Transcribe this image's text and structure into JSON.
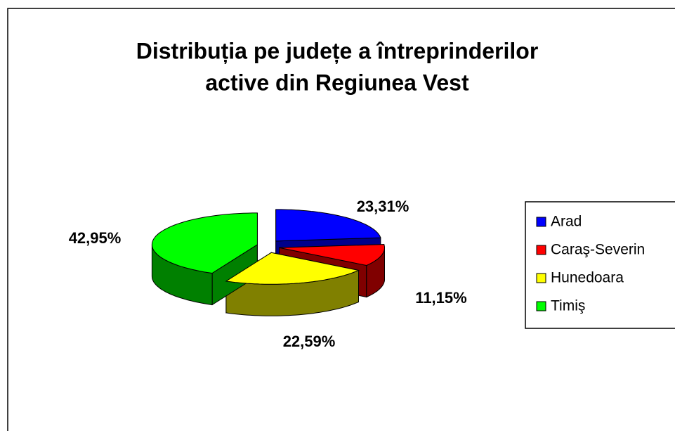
{
  "chart_data": {
    "type": "pie3d",
    "title": [
      "Distribuția pe județe a întreprinderilor",
      "active din Regiunea Vest"
    ],
    "categories": [
      "Arad",
      "Caraş-Severin",
      "Hunedoara",
      "Timiş"
    ],
    "values": [
      23.31,
      11.15,
      22.59,
      42.95
    ],
    "value_labels": [
      "23,31%",
      "11,15%",
      "22,59%",
      "42,95%"
    ],
    "colors": [
      "#0000ff",
      "#ff0000",
      "#ffff00",
      "#00ff00"
    ],
    "side_colors": [
      "#00008b",
      "#800000",
      "#808000",
      "#008000"
    ],
    "legend": "right"
  }
}
